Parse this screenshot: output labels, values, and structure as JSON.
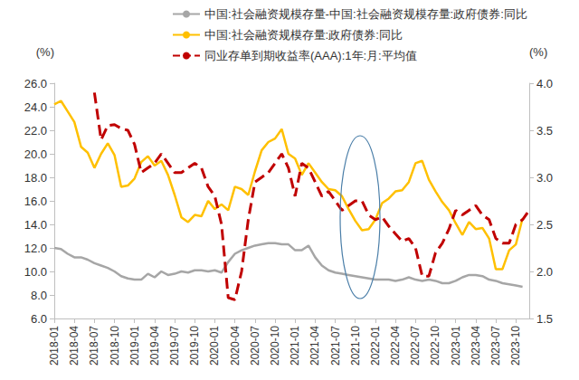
{
  "chart_data": {
    "type": "line",
    "categories": [
      "2018-01",
      null,
      null,
      "2018-04",
      null,
      null,
      "2018-07",
      null,
      null,
      "2018-10",
      null,
      null,
      "2019-01",
      null,
      null,
      "2019-04",
      null,
      null,
      "2019-07",
      null,
      null,
      "2019-10",
      null,
      null,
      "2020-01",
      null,
      null,
      "2020-04",
      null,
      null,
      "2020-07",
      null,
      null,
      "2020-10",
      null,
      null,
      "2021-01",
      null,
      null,
      "2021-04",
      null,
      null,
      "2021-07",
      null,
      null,
      "2021-10",
      null,
      null,
      "2022-01",
      null,
      null,
      "2022-04",
      null,
      null,
      "2022-07",
      null,
      null,
      "2022-10",
      null,
      null,
      "2023-01",
      null,
      null,
      "2023-04",
      null,
      null,
      "2023-07",
      null,
      null,
      "2023-10",
      null,
      null
    ],
    "ylabel": "(%)",
    "y2label": "(%)",
    "ylim": [
      6,
      26
    ],
    "yticks": [
      {
        "value": 6,
        "label": "6.0"
      },
      {
        "value": 8,
        "label": "8.0"
      },
      {
        "value": 10,
        "label": "10.0"
      },
      {
        "value": 12,
        "label": "12.0"
      },
      {
        "value": 14,
        "label": "14.0"
      },
      {
        "value": 16,
        "label": "16.0"
      },
      {
        "value": 18,
        "label": "18.0"
      },
      {
        "value": 20,
        "label": "20.0"
      },
      {
        "value": 22,
        "label": "22.0"
      },
      {
        "value": 24,
        "label": "24.0"
      },
      {
        "value": 26,
        "label": "26.0"
      }
    ],
    "y2lim": [
      1.5,
      4
    ],
    "y2ticks": [
      1.5,
      {
        "value": 2,
        "label": "2.0"
      },
      2.5,
      {
        "value": 3,
        "label": "3.0"
      },
      3.5,
      {
        "value": 4,
        "label": "4.0"
      }
    ],
    "grid": false,
    "legend": "top",
    "series": [
      {
        "name": "中国:社会融资规模存量-中国:社会融资规模存量:政府债券:同比",
        "color": "#a6a6a6",
        "line_style": "solid",
        "values": [
          12.0,
          11.9,
          11.5,
          11.2,
          11.2,
          11.0,
          10.7,
          10.5,
          10.3,
          10.0,
          9.6,
          9.4,
          9.3,
          9.3,
          9.8,
          9.5,
          10.0,
          9.7,
          9.8,
          10.0,
          9.9,
          10.1,
          10.1,
          10.0,
          10.1,
          9.9,
          10.8,
          11.5,
          11.8,
          12.0,
          12.2,
          12.3,
          12.4,
          12.4,
          12.3,
          12.3,
          11.8,
          11.8,
          12.2,
          11.2,
          10.5,
          10.1,
          9.9,
          9.8,
          9.7,
          9.6,
          9.5,
          9.4,
          9.3,
          9.3,
          9.3,
          9.2,
          9.3,
          9.5,
          9.3,
          9.2,
          9.3,
          9.2,
          9.0,
          9.0,
          9.2,
          9.5,
          9.7,
          9.7,
          9.6,
          9.3,
          9.2,
          9.0,
          8.9,
          8.8,
          8.7,
          null
        ]
      },
      {
        "name": "中国:社会融资规模存量:政府债券:同比",
        "color": "#ffc000",
        "line_style": "solid",
        "values": [
          24.2,
          24.5,
          23.6,
          22.7,
          20.6,
          20.1,
          18.8,
          20.0,
          20.9,
          19.9,
          17.2,
          17.3,
          17.9,
          19.3,
          19.8,
          19.0,
          19.4,
          18.2,
          16.5,
          14.6,
          14.2,
          14.8,
          14.7,
          16.0,
          15.3,
          15.7,
          15.2,
          17.2,
          17.0,
          16.5,
          18.5,
          20.3,
          21.0,
          21.3,
          22.1,
          20.0,
          19.6,
          18.2,
          19.2,
          18.4,
          17.6,
          17.0,
          16.9,
          16.4,
          15.3,
          14.3,
          13.5,
          13.6,
          14.4,
          15.8,
          16.2,
          16.8,
          16.9,
          17.6,
          19.2,
          19.4,
          17.8,
          16.8,
          15.9,
          15.2,
          14.1,
          13.1,
          14.2,
          13.6,
          13.7,
          12.8,
          10.2,
          10.2,
          11.8,
          12.3,
          14.5,
          null
        ]
      },
      {
        "name": "同业存单到期收益率(AAA):1年:月:平均值",
        "color": "#c00000",
        "line_style": "dashed",
        "axis": "y2",
        "values": [
          null,
          null,
          null,
          null,
          null,
          null,
          3.9,
          3.4,
          3.55,
          3.56,
          3.52,
          3.5,
          3.35,
          3.05,
          3.1,
          3.15,
          3.25,
          3.15,
          3.05,
          3.05,
          3.1,
          3.15,
          3.1,
          2.9,
          2.8,
          2.5,
          1.72,
          1.7,
          2.0,
          2.55,
          2.95,
          3.0,
          3.05,
          3.15,
          3.25,
          3.1,
          2.8,
          3.15,
          3.1,
          2.95,
          2.8,
          2.85,
          2.75,
          2.65,
          2.7,
          2.75,
          2.75,
          2.6,
          2.55,
          2.58,
          2.48,
          2.4,
          2.32,
          2.35,
          2.25,
          1.95,
          1.95,
          2.2,
          2.3,
          2.45,
          2.65,
          2.6,
          2.65,
          2.7,
          2.6,
          2.55,
          2.35,
          2.3,
          2.3,
          2.5,
          2.55,
          2.65
        ]
      }
    ]
  }
}
